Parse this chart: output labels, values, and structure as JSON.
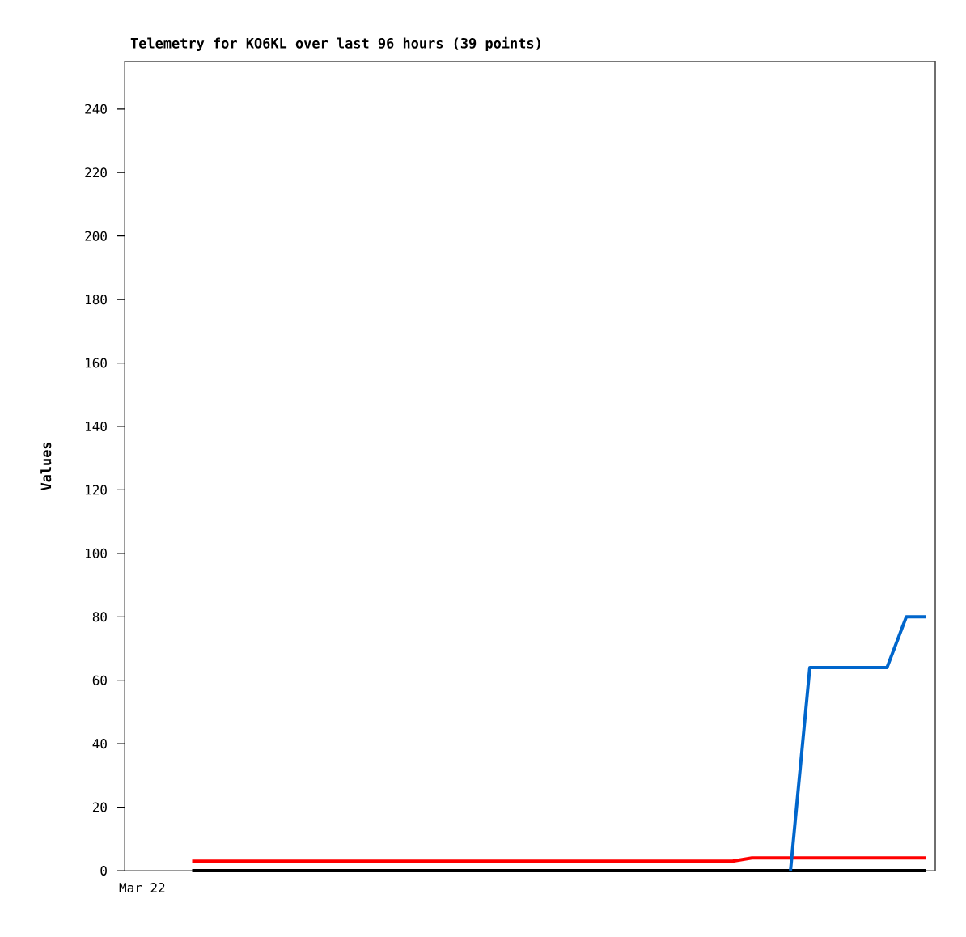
{
  "chart_data": {
    "type": "line",
    "title": "Telemetry for KO6KL over last 96 hours (39 points)",
    "ylabel": "Values",
    "categories": [
      null,
      null,
      null,
      null,
      null,
      null,
      null,
      null,
      null,
      null,
      null,
      null,
      null,
      null,
      null,
      null,
      null,
      null,
      null,
      null,
      null,
      null,
      null,
      null,
      null,
      null,
      null,
      null,
      null,
      null,
      null,
      null,
      null,
      null,
      null,
      null,
      null,
      null,
      null,
      null,
      null,
      null
    ],
    "annotations": [
      "Mar 22"
    ],
    "ylim": [
      0,
      255
    ],
    "yticks": [
      0,
      20,
      40,
      60,
      80,
      100,
      120,
      140,
      160,
      180,
      200,
      220,
      240
    ],
    "marker": "none",
    "line_style": "solid",
    "series": [
      {
        "color": "#000000",
        "values": [
          null,
          null,
          null,
          0,
          0,
          0,
          0,
          0,
          0,
          0,
          0,
          0,
          0,
          0,
          0,
          0,
          0,
          0,
          0,
          0,
          0,
          0,
          0,
          0,
          0,
          0,
          0,
          0,
          0,
          0,
          0,
          0,
          0,
          0,
          0,
          0,
          0,
          0,
          0,
          0,
          0,
          0
        ]
      },
      {
        "color": "#ff0000",
        "values": [
          null,
          null,
          null,
          3,
          3,
          3,
          3,
          3,
          3,
          3,
          3,
          3,
          3,
          3,
          3,
          3,
          3,
          3,
          3,
          3,
          3,
          3,
          3,
          3,
          3,
          3,
          3,
          3,
          3,
          3,
          3,
          3,
          4,
          4,
          4,
          4,
          4,
          4,
          4,
          4,
          4,
          4
        ]
      },
      {
        "color": "#0066cc",
        "values": [
          null,
          null,
          null,
          null,
          null,
          null,
          null,
          null,
          null,
          null,
          null,
          null,
          null,
          null,
          null,
          null,
          null,
          null,
          null,
          null,
          null,
          null,
          null,
          null,
          null,
          null,
          null,
          null,
          null,
          null,
          null,
          null,
          null,
          null,
          0,
          64,
          64,
          64,
          64,
          64,
          80,
          80
        ]
      }
    ]
  }
}
